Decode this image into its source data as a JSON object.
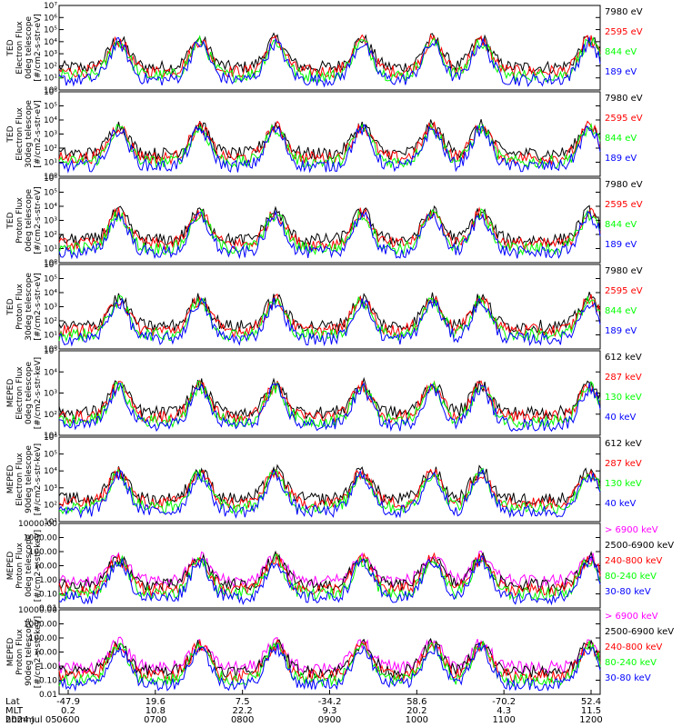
{
  "date": "2024 Jul 05",
  "footer": {
    "row_labels": [
      "Lat",
      "MLT",
      "hhmm"
    ],
    "ticks": [
      {
        "lat": "-47.9",
        "mlt": "0.2",
        "hhmm": "0600"
      },
      {
        "lat": "19.6",
        "mlt": "10.8",
        "hhmm": "0700"
      },
      {
        "lat": "7.5",
        "mlt": "22.2",
        "hhmm": "0800"
      },
      {
        "lat": "-34.2",
        "mlt": "9.3",
        "hhmm": "0900"
      },
      {
        "lat": "58.6",
        "mlt": "20.2",
        "hhmm": "1000"
      },
      {
        "lat": "-70.2",
        "mlt": "4.3",
        "hhmm": "1100"
      },
      {
        "lat": "52.4",
        "mlt": "11.5",
        "hhmm": "1200"
      }
    ]
  },
  "colors": {
    "blue": "#0000ff",
    "red": "#ff0000",
    "green": "#00ff00",
    "black": "#000000",
    "magenta": "#ff00ff"
  },
  "chart_data": [
    {
      "type": "line",
      "scale": "log",
      "ylim": [
        1,
        10000000
      ],
      "ylabel": [
        "TED",
        "Electron Flux",
        "0deg telescope",
        "[#/cm2-s-str-eV]"
      ],
      "ytick_labels": [
        "10⁰",
        "10¹",
        "10²",
        "10³",
        "10⁴",
        "10⁵",
        "10⁶",
        "10⁷"
      ],
      "ytick_values": [
        1,
        10,
        100,
        1000,
        10000,
        100000,
        1000000,
        10000000
      ],
      "series": [
        {
          "name": "7980 eV",
          "color": "#000000"
        },
        {
          "name": "2595 eV",
          "color": "#ff0000"
        },
        {
          "name": "844 eV",
          "color": "#00ff00"
        },
        {
          "name": "189 eV",
          "color": "#0000ff"
        }
      ]
    },
    {
      "type": "line",
      "scale": "log",
      "ylim": [
        1,
        1000000
      ],
      "ylabel": [
        "TED",
        "Electron Flux",
        "30deg telescope",
        "[#/cm2-s-str-eV]"
      ],
      "ytick_labels": [
        "10⁰",
        "10¹",
        "10²",
        "10³",
        "10⁴",
        "10⁵",
        "10⁶"
      ],
      "ytick_values": [
        1,
        10,
        100,
        1000,
        10000,
        100000,
        1000000
      ],
      "series": [
        {
          "name": "7980 eV",
          "color": "#000000"
        },
        {
          "name": "2595 eV",
          "color": "#ff0000"
        },
        {
          "name": "844 eV",
          "color": "#00ff00"
        },
        {
          "name": "189 eV",
          "color": "#0000ff"
        }
      ]
    },
    {
      "type": "line",
      "scale": "log",
      "ylim": [
        1,
        1000000
      ],
      "ylabel": [
        "TED",
        "Proton Flux",
        "0deg telescope",
        "[#/cm2-s-str-eV]"
      ],
      "ytick_labels": [
        "10⁰",
        "10¹",
        "10²",
        "10³",
        "10⁴",
        "10⁵",
        "10⁶"
      ],
      "ytick_values": [
        1,
        10,
        100,
        1000,
        10000,
        100000,
        1000000
      ],
      "series": [
        {
          "name": "7980 eV",
          "color": "#000000"
        },
        {
          "name": "2595 eV",
          "color": "#ff0000"
        },
        {
          "name": "844 eV",
          "color": "#00ff00"
        },
        {
          "name": "189 eV",
          "color": "#0000ff"
        }
      ]
    },
    {
      "type": "line",
      "scale": "log",
      "ylim": [
        1,
        1000000
      ],
      "ylabel": [
        "TED",
        "Proton Flux",
        "30deg telescope",
        "[#/cm2-s-str-eV]"
      ],
      "ytick_labels": [
        "10⁰",
        "10¹",
        "10²",
        "10³",
        "10⁴",
        "10⁵",
        "10⁶"
      ],
      "ytick_values": [
        1,
        10,
        100,
        1000,
        10000,
        100000,
        1000000
      ],
      "series": [
        {
          "name": "7980 eV",
          "color": "#000000"
        },
        {
          "name": "2595 eV",
          "color": "#ff0000"
        },
        {
          "name": "844 eV",
          "color": "#00ff00"
        },
        {
          "name": "189 eV",
          "color": "#0000ff"
        }
      ]
    },
    {
      "type": "line",
      "scale": "log",
      "ylim": [
        10,
        100000
      ],
      "ylabel": [
        "MEPED",
        "Electron Flux",
        "0deg telescope",
        "[#/cm2-s-str-keV]"
      ],
      "ytick_labels": [
        "10¹",
        "10²",
        "10³",
        "10⁴",
        "10⁵"
      ],
      "ytick_values": [
        10,
        100,
        1000,
        10000,
        100000
      ],
      "series": [
        {
          "name": "612 keV",
          "color": "#000000"
        },
        {
          "name": "287 keV",
          "color": "#ff0000"
        },
        {
          "name": "130 keV",
          "color": "#00ff00"
        },
        {
          "name": "40 keV",
          "color": "#0000ff"
        }
      ]
    },
    {
      "type": "line",
      "scale": "log",
      "ylim": [
        10,
        1000000
      ],
      "ylabel": [
        "MEPED",
        "Electron Flux",
        "90deg telescope",
        "[#/cm2-s-str-keV]"
      ],
      "ytick_labels": [
        "10¹",
        "10²",
        "10³",
        "10⁴",
        "10⁵",
        "10⁶"
      ],
      "ytick_values": [
        10,
        100,
        1000,
        10000,
        100000,
        1000000
      ],
      "series": [
        {
          "name": "612 keV",
          "color": "#000000"
        },
        {
          "name": "287 keV",
          "color": "#ff0000"
        },
        {
          "name": "130 keV",
          "color": "#00ff00"
        },
        {
          "name": "40 keV",
          "color": "#0000ff"
        }
      ]
    },
    {
      "type": "line",
      "scale": "log",
      "ylim": [
        0.01,
        10000
      ],
      "ylabel": [
        "MEPED",
        "Proton Flux",
        "0deg telescope",
        "[#/cm2-s-str-keV]"
      ],
      "ytick_labels": [
        "0.01",
        "0.10",
        "1.00",
        "10.00",
        "100.00",
        "1000.00",
        "10000.00"
      ],
      "ytick_values": [
        0.01,
        0.1,
        1,
        10,
        100,
        1000,
        10000
      ],
      "series": [
        {
          "name": "> 6900 keV",
          "color": "#ff00ff"
        },
        {
          "name": "2500-6900 keV",
          "color": "#000000"
        },
        {
          "name": "240-800 keV",
          "color": "#ff0000"
        },
        {
          "name": "80-240 keV",
          "color": "#00ff00"
        },
        {
          "name": "30-80 keV",
          "color": "#0000ff"
        }
      ]
    },
    {
      "type": "line",
      "scale": "log",
      "ylim": [
        0.01,
        10000
      ],
      "ylabel": [
        "MEPED",
        "Proton Flux",
        "90deg telescope",
        "[#/cm2-s-str-keV]"
      ],
      "ytick_labels": [
        "0.01",
        "0.10",
        "1.00",
        "10.00",
        "100.00",
        "1000.00",
        "10000.00"
      ],
      "ytick_values": [
        0.01,
        0.1,
        1,
        10,
        100,
        1000,
        10000
      ],
      "series": [
        {
          "name": "> 6900 keV",
          "color": "#ff00ff"
        },
        {
          "name": "2500-6900 keV",
          "color": "#000000"
        },
        {
          "name": "240-800 keV",
          "color": "#ff0000"
        },
        {
          "name": "80-240 keV",
          "color": "#00ff00"
        },
        {
          "name": "30-80 keV",
          "color": "#0000ff"
        }
      ]
    }
  ]
}
